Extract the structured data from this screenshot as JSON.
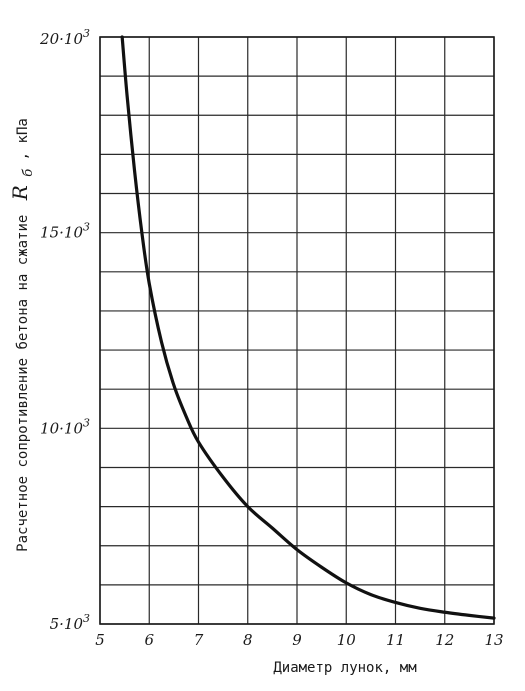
{
  "chart_data": {
    "type": "line",
    "xlabel": "Диаметр лунок, мм",
    "ylabel": "Расчетное сопротивление бетона на сжатие",
    "ylabel_symbol": "R",
    "ylabel_subscript": "б",
    "ylabel_unit": ", кПа",
    "xlim": [
      5,
      13
    ],
    "ylim": [
      5000,
      20000
    ],
    "x_ticks": [
      5,
      6,
      7,
      8,
      9,
      10,
      11,
      12,
      13
    ],
    "x_tick_labels": [
      "5",
      "6",
      "7",
      "8",
      "9",
      "10",
      "11",
      "12",
      "13"
    ],
    "y_ticks": [
      {
        "value": 5000,
        "mantissa": "5·10",
        "exp": "3"
      },
      {
        "value": 10000,
        "mantissa": "10·10",
        "exp": "3"
      },
      {
        "value": 15000,
        "mantissa": "15·10",
        "exp": "3"
      },
      {
        "value": 20000,
        "mantissa": "20·10",
        "exp": "3"
      }
    ],
    "grid": true,
    "y_grid_step": 1000,
    "series": [
      {
        "x": [
          5.45,
          5.55,
          5.7,
          5.85,
          6.0,
          6.25,
          6.5,
          6.75,
          7.0,
          7.5,
          8.0,
          8.5,
          9.0,
          9.5,
          10.0,
          10.5,
          11.0,
          11.5,
          12.0,
          12.5,
          13.0
        ],
        "y": [
          20000,
          18500,
          16600,
          15000,
          13700,
          12200,
          11100,
          10300,
          9650,
          8750,
          8000,
          7450,
          6900,
          6450,
          6050,
          5750,
          5550,
          5400,
          5300,
          5220,
          5150
        ],
        "color": "#111111"
      }
    ]
  }
}
